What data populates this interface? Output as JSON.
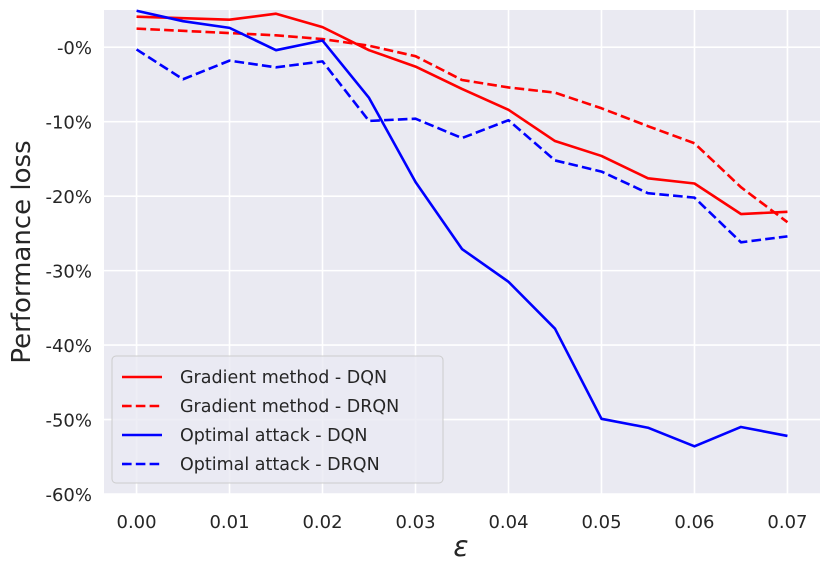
{
  "chart_data": {
    "type": "line",
    "title": "",
    "xlabel": "ε",
    "ylabel": "Performance loss",
    "xlim": [
      -0.0035,
      0.0735
    ],
    "ylim": [
      -60,
      5
    ],
    "x_ticks": [
      0.0,
      0.01,
      0.02,
      0.03,
      0.04,
      0.05,
      0.06,
      0.07
    ],
    "x_tick_labels": [
      "0.00",
      "0.01",
      "0.02",
      "0.03",
      "0.04",
      "0.05",
      "0.06",
      "0.07"
    ],
    "y_ticks": [
      0,
      -10,
      -20,
      -30,
      -40,
      -50,
      -60
    ],
    "y_tick_labels": [
      "-0%",
      "-10%",
      "-20%",
      "-30%",
      "-40%",
      "-50%",
      "-60%"
    ],
    "grid": true,
    "background_color": "#eaeaf2",
    "legend_position": "lower-left",
    "x": [
      0.0,
      0.005,
      0.01,
      0.015,
      0.02,
      0.025,
      0.03,
      0.035,
      0.04,
      0.045,
      0.05,
      0.055,
      0.06,
      0.065,
      0.07
    ],
    "series": [
      {
        "name": "Gradient method - DQN",
        "color": "#ff0000",
        "style": "solid",
        "values": [
          4.1,
          3.9,
          3.7,
          4.5,
          2.7,
          -0.4,
          -2.6,
          -5.6,
          -8.4,
          -12.6,
          -14.6,
          -17.6,
          -18.3,
          -22.4,
          -22.1
        ]
      },
      {
        "name": "Gradient method - DRQN",
        "color": "#ff0000",
        "style": "dashed",
        "values": [
          2.5,
          2.2,
          1.9,
          1.6,
          1.1,
          0.2,
          -1.2,
          -4.4,
          -5.4,
          -6.1,
          -8.2,
          -10.6,
          -12.9,
          -18.8,
          -23.5
        ]
      },
      {
        "name": "Optimal attack - DQN",
        "color": "#0000ff",
        "style": "solid",
        "values": [
          4.9,
          3.5,
          2.6,
          -0.4,
          0.9,
          -6.8,
          -18.1,
          -27.1,
          -31.5,
          -37.8,
          -49.9,
          -51.1,
          -53.6,
          -51.0,
          -52.2
        ]
      },
      {
        "name": "Optimal attack - DRQN",
        "color": "#0000ff",
        "style": "dashed",
        "values": [
          -0.3,
          -4.3,
          -1.8,
          -2.7,
          -1.9,
          -9.9,
          -9.6,
          -12.2,
          -9.8,
          -15.2,
          -16.7,
          -19.6,
          -20.2,
          -26.2,
          -25.4
        ]
      }
    ]
  }
}
